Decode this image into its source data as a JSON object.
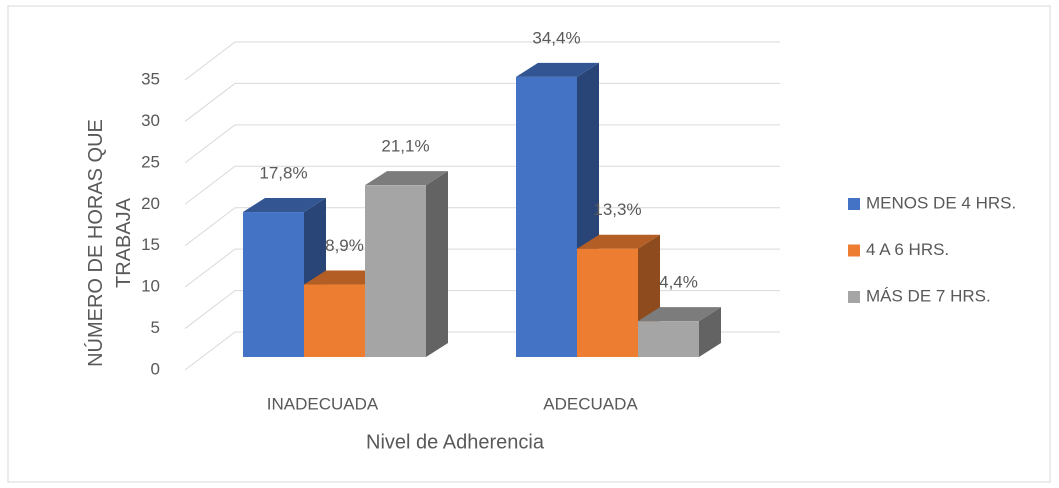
{
  "chart_data": {
    "type": "bar3d",
    "x_label": "Nivel de Adherencia",
    "y_label": "NÚMERO DE HORAS QUE TRABAJA",
    "categories": [
      "INADECUADA",
      "ADECUADA"
    ],
    "series": [
      {
        "name": "MENOS DE 4 HRS.",
        "color": "#4472c4",
        "values": [
          17.8,
          34.4
        ],
        "value_labels": [
          "17,8%",
          "34,4%"
        ]
      },
      {
        "name": "4 A 6 HRS.",
        "color": "#ed7d31",
        "values": [
          8.9,
          13.3
        ],
        "value_labels": [
          "8,9%",
          "13,3%"
        ]
      },
      {
        "name": "MÁS DE 7 HRS.",
        "color": "#a5a5a5",
        "values": [
          21.1,
          4.4
        ],
        "value_labels": [
          "21,1%",
          "4,4%"
        ]
      }
    ],
    "ylim": [
      0,
      35
    ],
    "yticks": [
      0,
      5,
      10,
      15,
      20,
      25,
      30,
      35
    ],
    "grid": true,
    "legend": "right"
  }
}
